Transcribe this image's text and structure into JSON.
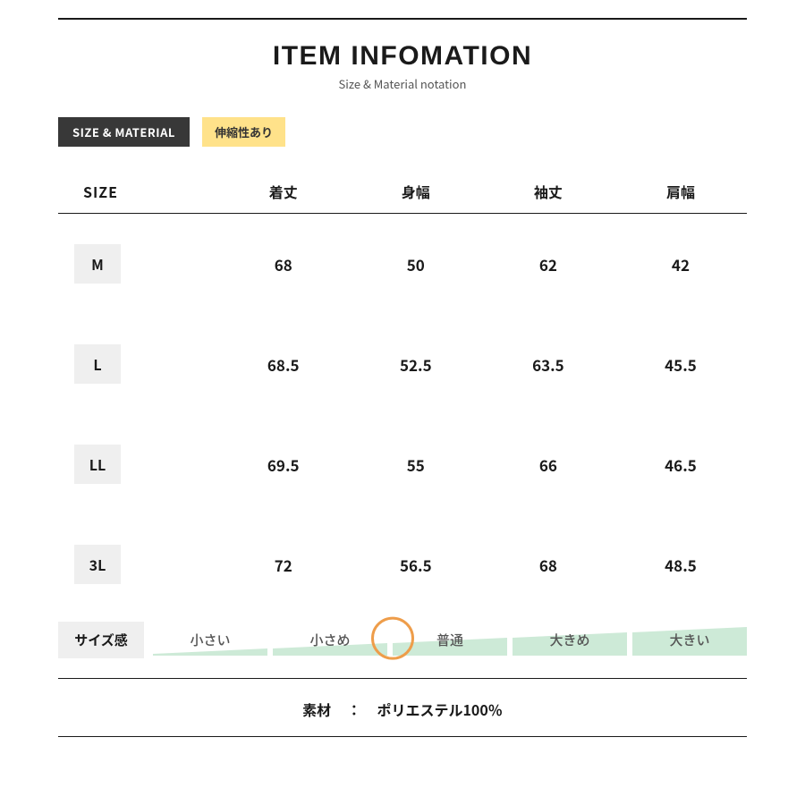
{
  "header": {
    "title": "ITEM INFOMATION",
    "subtitle": "Size & Material notation"
  },
  "tags": {
    "dark": "SIZE  & MATERIAL",
    "yellow": "伸縮性あり"
  },
  "table": {
    "columns": [
      "SIZE",
      "着丈",
      "身幅",
      "袖丈",
      "肩幅"
    ],
    "rows": [
      {
        "size": "M",
        "vals": [
          "68",
          "50",
          "62",
          "42"
        ]
      },
      {
        "size": "L",
        "vals": [
          "68.5",
          "52.5",
          "63.5",
          "45.5"
        ]
      },
      {
        "size": "LL",
        "vals": [
          "69.5",
          "55",
          "66",
          "46.5"
        ]
      },
      {
        "size": "3L",
        "vals": [
          "72",
          "56.5",
          "68",
          "48.5"
        ]
      }
    ]
  },
  "feel": {
    "label": "サイズ感",
    "steps": [
      "小さい",
      "小さめ",
      "普通",
      "大きめ",
      "大きい"
    ],
    "selected_index": 2,
    "step_heights": [
      8,
      14,
      20,
      26,
      32
    ],
    "step_fill": "#cdead7",
    "marker_color": "#ee9d4a"
  },
  "material": {
    "label": "素材",
    "value": "ポリエステル100％"
  },
  "colors": {
    "text": "#1a1a1a",
    "badge_bg": "#efefef",
    "tag_dark_bg": "#383838",
    "tag_yellow_bg": "#ffe28a"
  }
}
